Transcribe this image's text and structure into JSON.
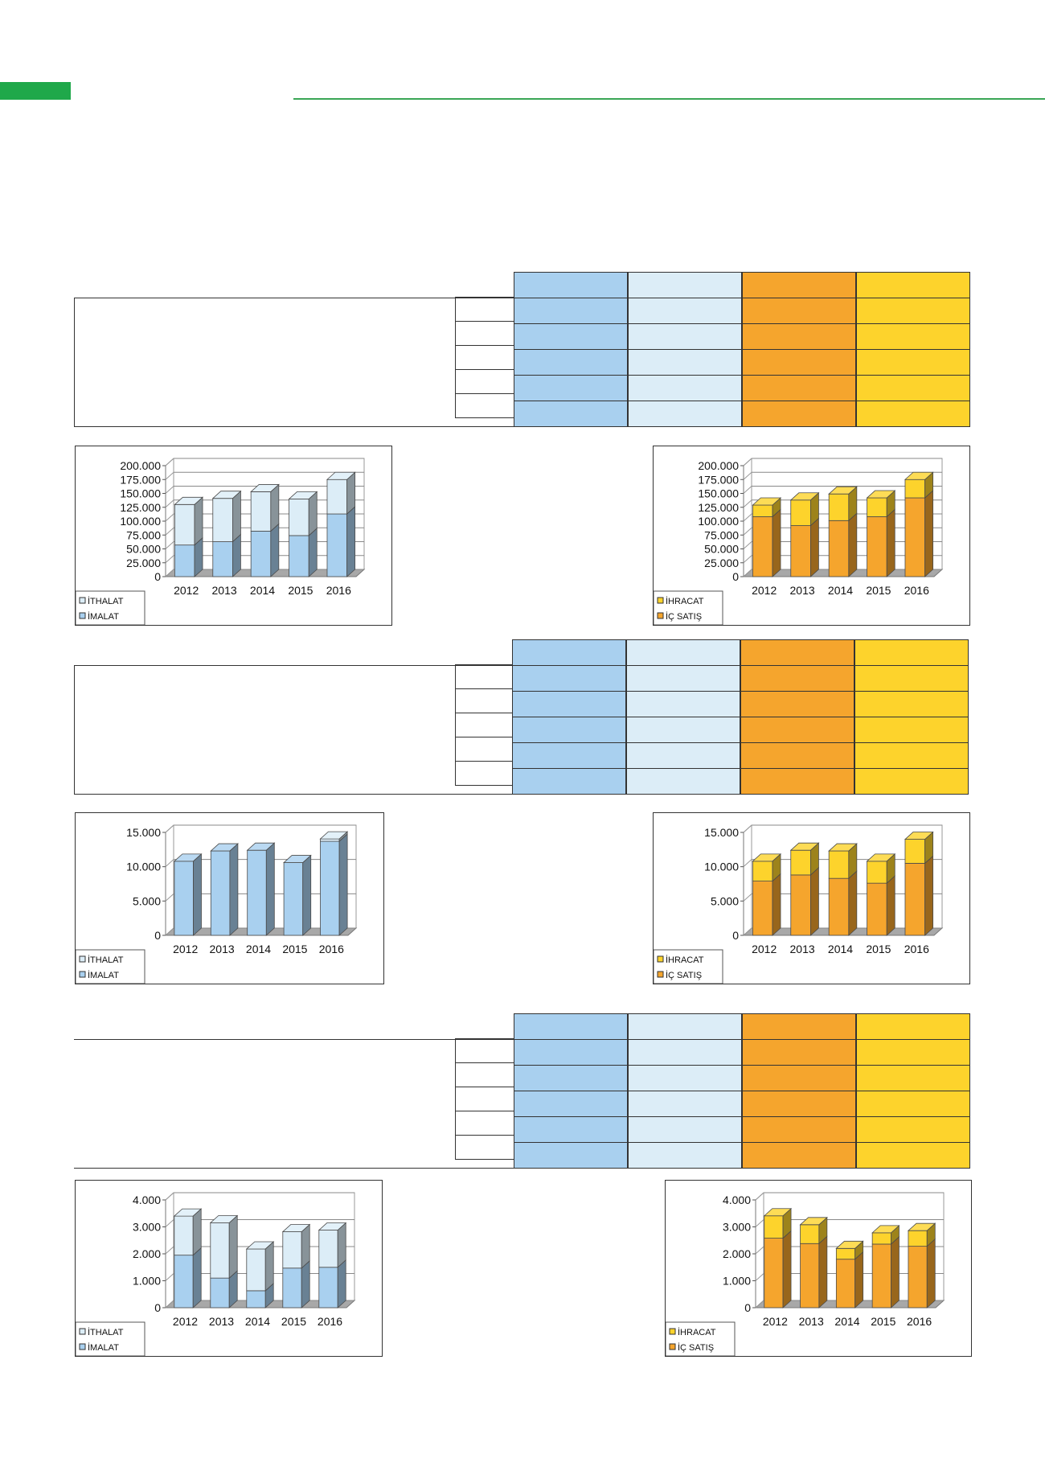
{
  "colors": {
    "import_blue": "#a9d0ef",
    "import_light": "#dcedf7",
    "export_orange": "#f5a52d",
    "export_yellow": "#fdd32c",
    "accent_green": "#1fa84a"
  },
  "tables": [
    {
      "rows": 5
    },
    {
      "rows": 5
    },
    {
      "rows": 5
    }
  ],
  "chart_data": [
    {
      "type": "bar",
      "stacked": true,
      "categories": [
        "2012",
        "2013",
        "2014",
        "2015",
        "2016"
      ],
      "ylim": [
        0,
        200000
      ],
      "yticks": [
        "0",
        "25.000",
        "50.000",
        "75.000",
        "100.000",
        "125.000",
        "150.000",
        "175.000",
        "200.000"
      ],
      "series": [
        {
          "name": "İMALAT",
          "values": [
            57000,
            63000,
            82000,
            74000,
            113000
          ],
          "color": "#a9d0ef"
        },
        {
          "name": "İTHALAT",
          "values": [
            73000,
            78000,
            71000,
            66000,
            62000
          ],
          "color": "#dcedf7"
        }
      ],
      "legend": [
        "İTHALAT",
        "İMALAT"
      ],
      "legend_position": "bottom-left"
    },
    {
      "type": "bar",
      "stacked": true,
      "categories": [
        "2012",
        "2013",
        "2014",
        "2015",
        "2016"
      ],
      "ylim": [
        0,
        200000
      ],
      "yticks": [
        "0",
        "25.000",
        "50.000",
        "75.000",
        "100.000",
        "125.000",
        "150.000",
        "175.000",
        "200.000"
      ],
      "series": [
        {
          "name": "İÇ SATIŞ",
          "values": [
            108000,
            92000,
            101000,
            108000,
            142000
          ],
          "color": "#f5a52d"
        },
        {
          "name": "İHRACAT",
          "values": [
            21000,
            46000,
            48000,
            34000,
            33000
          ],
          "color": "#fdd32c"
        }
      ],
      "legend": [
        "İHRACAT",
        "İÇ SATIŞ"
      ],
      "legend_position": "bottom-left"
    },
    {
      "type": "bar",
      "stacked": true,
      "categories": [
        "2012",
        "2013",
        "2014",
        "2015",
        "2016"
      ],
      "ylim": [
        0,
        15000
      ],
      "yticks": [
        "0",
        "5.000",
        "10.000",
        "15.000"
      ],
      "series": [
        {
          "name": "İMALAT",
          "values": [
            10800,
            12300,
            12400,
            10600,
            13700
          ],
          "color": "#a9d0ef"
        },
        {
          "name": "İTHALAT",
          "values": [
            0,
            0,
            0,
            0,
            350
          ],
          "color": "#dcedf7"
        }
      ],
      "legend": [
        "İTHALAT",
        "İMALAT"
      ],
      "legend_position": "bottom-left"
    },
    {
      "type": "bar",
      "stacked": true,
      "categories": [
        "2012",
        "2013",
        "2014",
        "2015",
        "2016"
      ],
      "ylim": [
        0,
        15000
      ],
      "yticks": [
        "0",
        "5.000",
        "10.000",
        "15.000"
      ],
      "series": [
        {
          "name": "İÇ SATIŞ",
          "values": [
            7900,
            8800,
            8300,
            7600,
            10500
          ],
          "color": "#f5a52d"
        },
        {
          "name": "İHRACAT",
          "values": [
            2900,
            3600,
            4000,
            3200,
            3500
          ],
          "color": "#fdd32c"
        }
      ],
      "legend": [
        "İHRACAT",
        "İÇ SATIŞ"
      ],
      "legend_position": "bottom-left"
    },
    {
      "type": "bar",
      "stacked": true,
      "categories": [
        "2012",
        "2013",
        "2014",
        "2015",
        "2016"
      ],
      "ylim": [
        0,
        4000
      ],
      "yticks": [
        "0",
        "1.000",
        "2.000",
        "3.000",
        "4.000"
      ],
      "series": [
        {
          "name": "İMALAT",
          "values": [
            1950,
            1100,
            630,
            1470,
            1500
          ],
          "color": "#a9d0ef"
        },
        {
          "name": "İTHALAT",
          "values": [
            1450,
            2050,
            1550,
            1350,
            1380
          ],
          "color": "#dcedf7"
        }
      ],
      "legend": [
        "İTHALAT",
        "İMALAT"
      ],
      "legend_position": "bottom-left"
    },
    {
      "type": "bar",
      "stacked": true,
      "categories": [
        "2012",
        "2013",
        "2014",
        "2015",
        "2016"
      ],
      "ylim": [
        0,
        4000
      ],
      "yticks": [
        "0",
        "1.000",
        "2.000",
        "3.000",
        "4.000"
      ],
      "series": [
        {
          "name": "İÇ SATIŞ",
          "values": [
            2580,
            2380,
            1800,
            2360,
            2280
          ],
          "color": "#f5a52d"
        },
        {
          "name": "İHRACAT",
          "values": [
            830,
            700,
            400,
            420,
            580
          ],
          "color": "#fdd32c"
        }
      ],
      "legend": [
        "İHRACAT",
        "İÇ SATIŞ"
      ],
      "legend_position": "bottom-left"
    }
  ]
}
